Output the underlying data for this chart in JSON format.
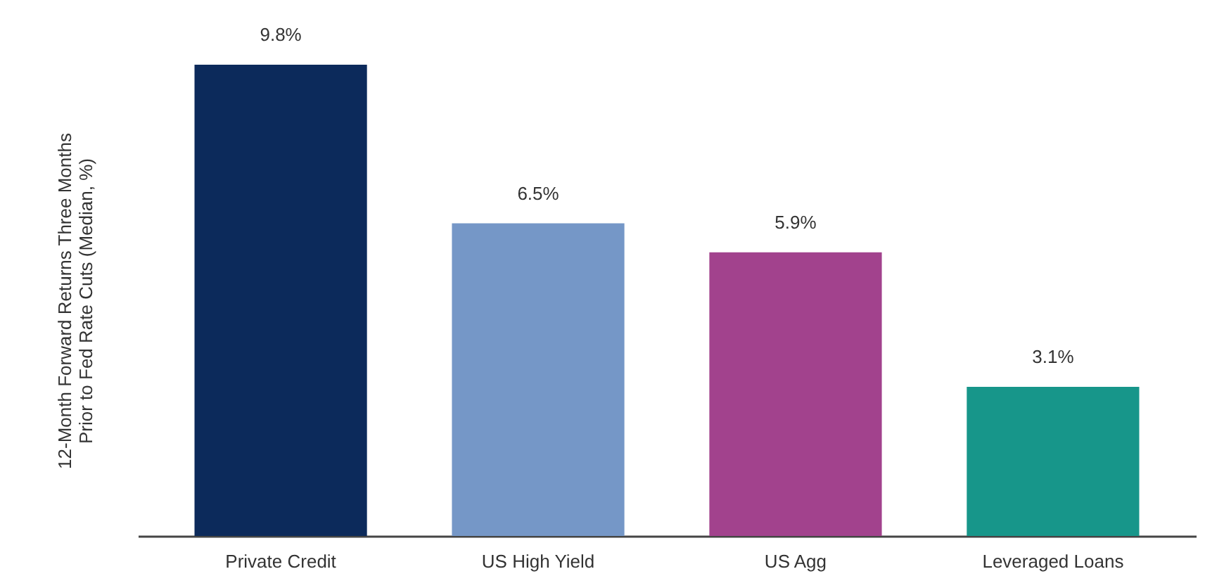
{
  "chart_data": {
    "type": "bar",
    "ylabel": "12-Month Forward Returns Three Months Prior to Fed Rate Cuts (Median, %)",
    "categories": [
      "Private Credit",
      "US High Yield",
      "US Agg",
      "Leveraged Loans"
    ],
    "values": [
      9.8,
      6.5,
      5.9,
      3.1
    ],
    "colors": [
      "#0c2a5b",
      "#7597c7",
      "#a2428d",
      "#17968a"
    ],
    "value_labels": [
      "9.8%",
      "6.5%",
      "5.9%",
      "3.1%"
    ]
  }
}
